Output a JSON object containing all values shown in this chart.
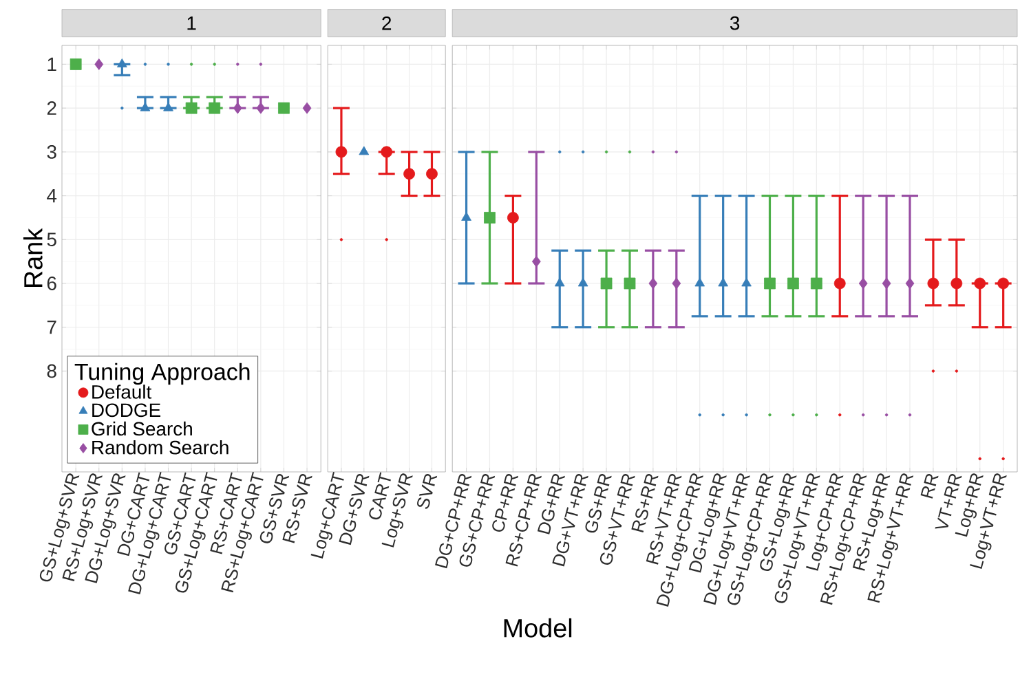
{
  "chart_data": [
    {
      "type": "scatter",
      "title": "1",
      "ylabel": "Rank",
      "legend_title": "Tuning Approach",
      "legend": "bottom left",
      "grid": true,
      "ylim": [
        10.3,
        0.57
      ],
      "yticks": [
        1,
        2,
        3,
        4,
        5,
        6,
        7,
        8
      ],
      "categories": [
        "GS+Log+SVR",
        "RS+Log+SVR",
        "DG+Log+SVR",
        "DG+CART",
        "DG+Log+CART",
        "GS+CART",
        "GS+Log+CART",
        "RS+CART",
        "RS+Log+CART",
        "GS+SVR",
        "RS+SVR"
      ],
      "series": [
        {
          "name": "Default",
          "color": "#e41a1c",
          "marker": "circle",
          "values": [
            null,
            null,
            null,
            null,
            null,
            null,
            null,
            null,
            null,
            null,
            null
          ],
          "errors": [
            null,
            null,
            null,
            null,
            null,
            null,
            null,
            null,
            null,
            null,
            null
          ]
        },
        {
          "name": "DODGE",
          "color": "#377eb8",
          "marker": "triangle",
          "values": [
            null,
            null,
            1,
            2,
            2,
            null,
            null,
            null,
            null,
            null,
            null
          ],
          "errors": [
            null,
            null,
            [
              1,
              1.25
            ],
            [
              1.75,
              2
            ],
            [
              1.75,
              2
            ],
            null,
            null,
            null,
            null,
            null,
            null
          ]
        },
        {
          "name": "Grid Search",
          "color": "#4daf4a",
          "marker": "square",
          "values": [
            1,
            null,
            null,
            null,
            null,
            2,
            2,
            null,
            null,
            2,
            null
          ],
          "errors": [
            null,
            null,
            null,
            null,
            null,
            [
              1.75,
              2
            ],
            [
              1.75,
              2
            ],
            null,
            null,
            null,
            null
          ]
        },
        {
          "name": "Random Search",
          "color": "#984ea3",
          "marker": "diamond",
          "values": [
            null,
            1,
            null,
            null,
            null,
            null,
            null,
            2,
            2,
            null,
            2
          ],
          "errors": [
            null,
            null,
            null,
            null,
            null,
            null,
            null,
            [
              1.75,
              2
            ],
            [
              1.75,
              2
            ],
            null,
            null
          ]
        },
        {
          "color": "#377eb8",
          "marker": "circle",
          "values": [
            null,
            null,
            2,
            1,
            1,
            null,
            null,
            null,
            null,
            null,
            null
          ]
        },
        {
          "color": "#4daf4a",
          "marker": "circle",
          "values": [
            null,
            null,
            null,
            null,
            null,
            1,
            1,
            null,
            null,
            null,
            null
          ]
        },
        {
          "color": "#984ea3",
          "marker": "circle",
          "values": [
            null,
            null,
            null,
            null,
            null,
            null,
            null,
            1,
            1,
            null,
            null
          ]
        }
      ]
    },
    {
      "type": "scatter",
      "title": "2",
      "grid": true,
      "tick_labels": "x",
      "ylim": [
        10.3,
        0.57
      ],
      "yticks": [
        1,
        2,
        3,
        4,
        5,
        6,
        7,
        8
      ],
      "categories": [
        "Log+CART",
        "DG+SVR",
        "CART",
        "Log+SVR",
        "SVR"
      ],
      "series": [
        {
          "color": "#e41a1c",
          "marker": "circle",
          "values": [
            3,
            null,
            3,
            3.5,
            3.5
          ],
          "errors": [
            [
              2,
              3.5
            ],
            null,
            [
              3,
              3.5
            ],
            [
              3,
              4
            ],
            [
              3,
              4
            ]
          ]
        },
        {
          "color": "#377eb8",
          "marker": "triangle",
          "values": [
            null,
            3,
            null,
            null,
            null
          ],
          "errors": [
            null,
            null,
            null,
            null,
            null
          ]
        },
        {
          "color": "#e41a1c",
          "marker": "circle",
          "values": [
            5,
            null,
            5,
            null,
            null
          ]
        }
      ]
    },
    {
      "type": "scatter",
      "title": "3",
      "xlabel": "Model",
      "grid": true,
      "tick_labels": "x",
      "ylim": [
        10.3,
        0.57
      ],
      "yticks": [
        1,
        2,
        3,
        4,
        5,
        6,
        7,
        8
      ],
      "categories": [
        "DG+CP+RR",
        "GS+CP+RR",
        "CP+RR",
        "RS+CP+RR",
        "DG+RR",
        "DG+VT+RR",
        "GS+RR",
        "GS+VT+RR",
        "RS+RR",
        "RS+VT+RR",
        "DG+Log+CP+RR",
        "DG+Log+RR",
        "DG+Log+VT+RR",
        "GS+Log+CP+RR",
        "GS+Log+RR",
        "GS+Log+VT+RR",
        "Log+CP+RR",
        "RS+Log+CP+RR",
        "RS+Log+RR",
        "RS+Log+VT+RR",
        "RR",
        "VT+RR",
        "Log+RR",
        "Log+VT+RR"
      ],
      "series": [
        {
          "color": "#377eb8",
          "marker": "triangle",
          "values": [
            4.5,
            null,
            null,
            null,
            6,
            6,
            null,
            null,
            null,
            null,
            6,
            6,
            6,
            null,
            null,
            null,
            null,
            null,
            null,
            null,
            null,
            null,
            null,
            null
          ],
          "errors": [
            [
              3,
              6
            ],
            null,
            null,
            null,
            [
              5.25,
              7
            ],
            [
              5.25,
              7
            ],
            null,
            null,
            null,
            null,
            [
              4,
              6.75
            ],
            [
              4,
              6.75
            ],
            [
              4,
              6.75
            ],
            null,
            null,
            null,
            null,
            null,
            null,
            null,
            null,
            null,
            null,
            null
          ]
        },
        {
          "color": "#4daf4a",
          "marker": "square",
          "values": [
            null,
            4.5,
            null,
            null,
            null,
            null,
            6,
            6,
            null,
            null,
            null,
            null,
            null,
            6,
            6,
            6,
            null,
            null,
            null,
            null,
            null,
            null,
            null,
            null
          ],
          "errors": [
            null,
            [
              3,
              6
            ],
            null,
            null,
            null,
            null,
            [
              5.25,
              7
            ],
            [
              5.25,
              7
            ],
            null,
            null,
            null,
            null,
            null,
            [
              4,
              6.75
            ],
            [
              4,
              6.75
            ],
            [
              4,
              6.75
            ],
            null,
            null,
            null,
            null,
            null,
            null,
            null,
            null
          ]
        },
        {
          "color": "#e41a1c",
          "marker": "circle",
          "values": [
            null,
            null,
            4.5,
            null,
            null,
            null,
            null,
            null,
            null,
            null,
            null,
            null,
            null,
            null,
            null,
            null,
            6,
            null,
            null,
            null,
            6,
            6,
            6,
            6
          ],
          "errors": [
            null,
            null,
            [
              4,
              6
            ],
            null,
            null,
            null,
            null,
            null,
            null,
            null,
            null,
            null,
            null,
            null,
            null,
            null,
            [
              4,
              6.75
            ],
            null,
            null,
            null,
            [
              5,
              6.5
            ],
            [
              5,
              6.5
            ],
            [
              6,
              7
            ],
            [
              6,
              7
            ]
          ]
        },
        {
          "color": "#984ea3",
          "marker": "diamond",
          "values": [
            null,
            null,
            null,
            5.5,
            null,
            null,
            null,
            null,
            6,
            6,
            null,
            null,
            null,
            null,
            null,
            null,
            null,
            6,
            6,
            6,
            null,
            null,
            null,
            null
          ],
          "errors": [
            null,
            null,
            null,
            [
              3,
              6
            ],
            null,
            null,
            null,
            null,
            [
              5.25,
              7
            ],
            [
              5.25,
              7
            ],
            null,
            null,
            null,
            null,
            null,
            null,
            null,
            [
              4,
              6.75
            ],
            [
              4,
              6.75
            ],
            [
              4,
              6.75
            ],
            null,
            null,
            null,
            null
          ]
        },
        {
          "color": "#377eb8",
          "marker": "circle",
          "values": [
            null,
            null,
            null,
            null,
            3,
            3,
            null,
            null,
            null,
            null,
            9,
            9,
            9,
            null,
            null,
            null,
            null,
            null,
            null,
            null,
            null,
            null,
            null,
            null
          ]
        },
        {
          "color": "#4daf4a",
          "marker": "circle",
          "values": [
            null,
            null,
            null,
            null,
            null,
            null,
            3,
            3,
            null,
            null,
            null,
            null,
            null,
            9,
            9,
            9,
            null,
            null,
            null,
            null,
            null,
            null,
            null,
            null
          ]
        },
        {
          "color": "#e41a1c",
          "marker": "circle",
          "values": [
            null,
            null,
            null,
            null,
            null,
            null,
            null,
            null,
            null,
            null,
            null,
            null,
            null,
            null,
            null,
            null,
            9,
            null,
            null,
            null,
            8,
            8,
            10,
            10
          ]
        },
        {
          "color": "#984ea3",
          "marker": "circle",
          "values": [
            null,
            null,
            null,
            null,
            null,
            null,
            null,
            null,
            3,
            3,
            null,
            null,
            null,
            null,
            null,
            null,
            null,
            9,
            9,
            9,
            null,
            null,
            null,
            null
          ]
        }
      ]
    }
  ]
}
